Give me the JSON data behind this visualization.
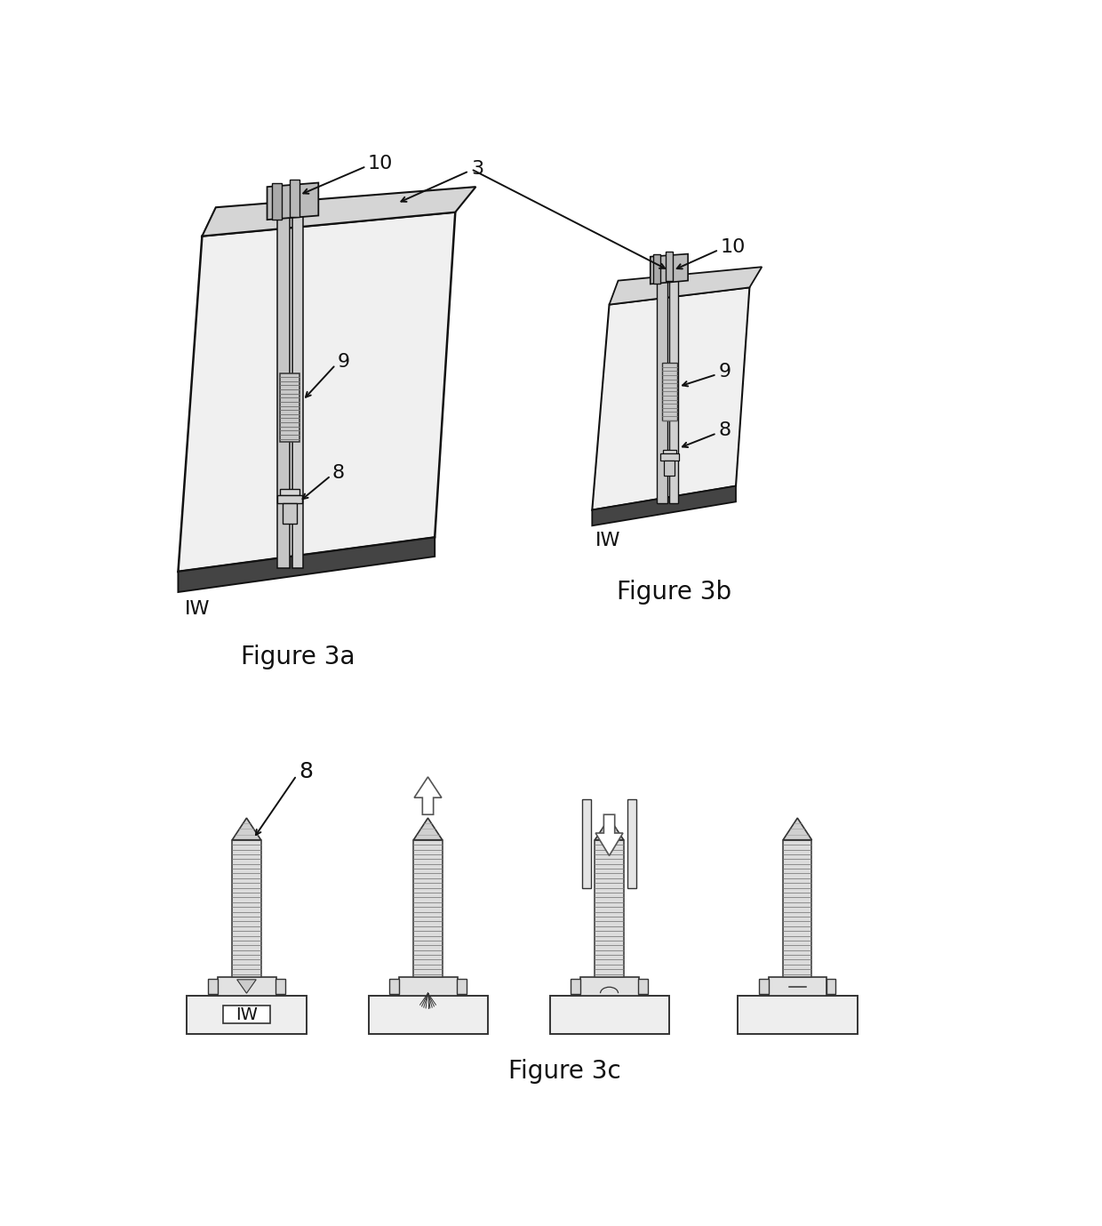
{
  "fig_width": 12.4,
  "fig_height": 13.79,
  "bg_color": "#ffffff",
  "line_color": "#111111",
  "fig3a_label": "Figure 3a",
  "fig3b_label": "Figure 3b",
  "fig3c_label": "Figure 3c",
  "label_10a": "10",
  "label_3": "3",
  "label_9a": "9",
  "label_8a": "8",
  "label_IWa": "IW",
  "label_10b": "10",
  "label_9b": "9",
  "label_8b": "8",
  "label_IWb": "IW",
  "label_8c": "8",
  "label_IWc": "IW",
  "fontsize_label": 16,
  "fontsize_fig": 20
}
